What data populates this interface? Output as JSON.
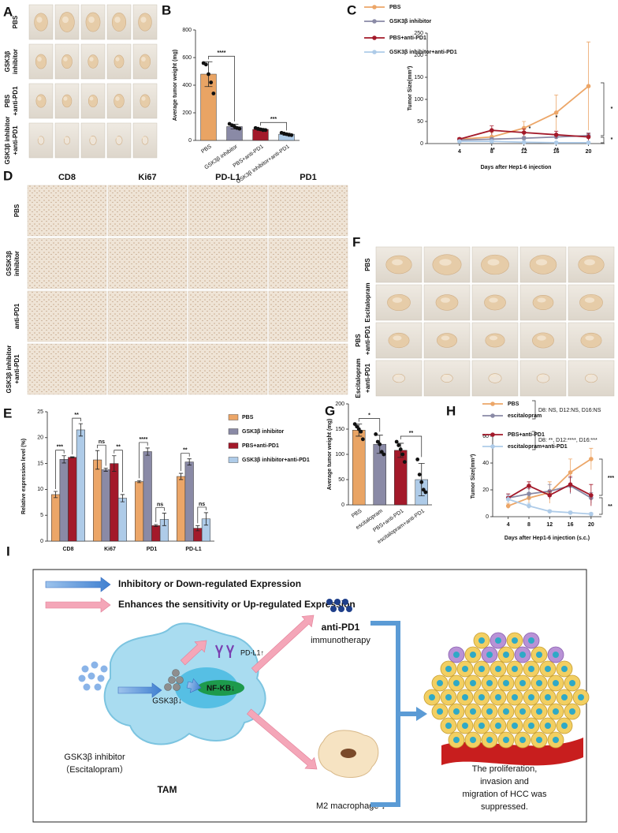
{
  "chart_data": [
    {
      "panel": "B",
      "type": "bar",
      "y_label": "Average tumor  weight (mg)",
      "categories": [
        "PBS",
        "GSK3β inhibitor",
        "PBS+anti-PD1",
        "GSK3β inhibitor+anti-PD1"
      ],
      "values": [
        480,
        100,
        80,
        45
      ],
      "errors": [
        90,
        18,
        8,
        8
      ],
      "points": [
        [
          560,
          550,
          480,
          420,
          340
        ],
        [
          120,
          110,
          100,
          90,
          85
        ],
        [
          90,
          85,
          80,
          75,
          75
        ],
        [
          55,
          50,
          45,
          40,
          38
        ]
      ],
      "colors": [
        "#e9a464",
        "#8a8aa6",
        "#a3192a",
        "#aecbe8"
      ],
      "ylim": [
        0,
        800
      ],
      "yticks": [
        0,
        200,
        400,
        600,
        800
      ],
      "annotations": [
        "****",
        "***"
      ]
    },
    {
      "panel": "C",
      "type": "line",
      "y_label": "Tumor Size(mm³)",
      "x_label": "Days after Hep1-6 injection",
      "x": [
        4,
        8,
        12,
        16,
        20
      ],
      "xlim": [
        0,
        22
      ],
      "xticks": [
        4,
        8,
        12,
        16,
        20
      ],
      "ylim": [
        0,
        250
      ],
      "yticks": [
        0,
        50,
        100,
        150,
        200,
        250
      ],
      "series": [
        {
          "name": "PBS",
          "color": "#eca668",
          "values": [
            10,
            15,
            35,
            70,
            130
          ],
          "errors": [
            3,
            10,
            15,
            40,
            100
          ]
        },
        {
          "name": "GSK3β inhibitor",
          "color": "#8a8aa6",
          "values": [
            8,
            10,
            12,
            15,
            18
          ],
          "errors": [
            2,
            3,
            4,
            5,
            6
          ]
        },
        {
          "name": "PBS+anti-PD1",
          "color": "#a3192a",
          "values": [
            10,
            30,
            25,
            20,
            15
          ],
          "errors": [
            3,
            10,
            8,
            8,
            8
          ]
        },
        {
          "name": "GSK3β inhibitor+anti-PD1",
          "color": "#aecbe8",
          "values": [
            5,
            5,
            3,
            2,
            2
          ],
          "errors": [
            2,
            2,
            1,
            1,
            1
          ]
        }
      ],
      "annotations": [
        "**",
        "*",
        "**",
        "*",
        "**",
        "*",
        "*"
      ]
    },
    {
      "panel": "E",
      "type": "bar",
      "y_label": "Relative expression level  (%)",
      "categories": [
        "CD8",
        "Ki67",
        "PD1",
        "PD-L1"
      ],
      "series": [
        {
          "name": "PBS",
          "color": "#eca668",
          "values": [
            9,
            15.7,
            11.5,
            12.5
          ],
          "errors": [
            0.6,
            1.8,
            0.2,
            0.6
          ]
        },
        {
          "name": "GSK3β inhibitor",
          "color": "#8a8aa6",
          "values": [
            15.8,
            13.8,
            17.3,
            15.3
          ],
          "errors": [
            0.7,
            0.3,
            0.7,
            0.6
          ]
        },
        {
          "name": "PBS+anti-PD1",
          "color": "#a3192a",
          "values": [
            16.2,
            15,
            3,
            2.5
          ],
          "errors": [
            0.1,
            1.5,
            0.2,
            0.5
          ]
        },
        {
          "name": "GSK3β inhibitor+anti-PD1",
          "color": "#aecbe8",
          "values": [
            21.5,
            8.3,
            4.2,
            4.3
          ],
          "errors": [
            1.2,
            0.7,
            1.2,
            1.2
          ]
        }
      ],
      "ylim": [
        0,
        25
      ],
      "yticks": [
        0,
        5,
        10,
        15,
        20,
        25
      ],
      "annotations": [
        "***",
        "**",
        "ns",
        "**",
        "****",
        "ns",
        "**",
        "ns"
      ]
    },
    {
      "panel": "G",
      "type": "bar",
      "y_label": "Average tumor weight (mg)",
      "categories": [
        "PBS",
        "escitalopram",
        "PBS+anti-PD1",
        "escitalopram+anti-PD1"
      ],
      "values": [
        148,
        120,
        108,
        50
      ],
      "errors": [
        12,
        18,
        14,
        32
      ],
      "points": [
        [
          160,
          155,
          150,
          145,
          130
        ],
        [
          140,
          125,
          120,
          105,
          100
        ],
        [
          125,
          118,
          110,
          100,
          85
        ],
        [
          90,
          60,
          45,
          30,
          25
        ]
      ],
      "colors": [
        "#e9a464",
        "#8a8aa6",
        "#a3192a",
        "#aecbe8"
      ],
      "ylim": [
        0,
        200
      ],
      "yticks": [
        0,
        50,
        100,
        150,
        200
      ],
      "annotations": [
        "*",
        "**"
      ]
    },
    {
      "panel": "H",
      "type": "line",
      "y_label": "Tumor Size(mm³)",
      "x_label": "Days after Hep1-6 injection (s.c.)",
      "x": [
        4,
        8,
        12,
        16,
        20
      ],
      "xlim": [
        1,
        22
      ],
      "xticks": [
        4,
        8,
        12,
        16,
        20
      ],
      "ylim": [
        0,
        60
      ],
      "yticks": [
        0,
        20,
        40,
        60
      ],
      "series": [
        {
          "name": "PBS",
          "color": "#eca668",
          "values": [
            8,
            14,
            18,
            33,
            43
          ],
          "errors": [
            2,
            4,
            8,
            10,
            8
          ]
        },
        {
          "name": "escitalopram",
          "color": "#8a8aa6",
          "values": [
            14,
            17,
            19,
            23,
            14
          ],
          "errors": [
            3,
            4,
            5,
            6,
            4
          ]
        },
        {
          "name": "PBS+anti-PD1",
          "color": "#a3192a",
          "values": [
            14,
            23,
            16,
            24,
            16
          ],
          "errors": [
            3,
            3,
            3,
            6,
            8
          ]
        },
        {
          "name": "escitalopram+anti-PD1",
          "color": "#aecbe8",
          "values": [
            13,
            8,
            4,
            3,
            2
          ],
          "errors": [
            3,
            2,
            1,
            1,
            1
          ]
        }
      ],
      "notes": [
        "D8: NS, D12:NS, D16:NS",
        "D8: **, D12:****, D16:***"
      ],
      "annotations": [
        "***",
        "**"
      ]
    }
  ],
  "photo_panels": [
    {
      "panel": "A",
      "row_labels": [
        [
          "PBS"
        ],
        [
          "GSK3β",
          "inhibitor"
        ],
        [
          "PBS",
          "+anti-PD1"
        ],
        [
          "GSK3β inhibitor",
          "+anti-PD1"
        ]
      ]
    },
    {
      "panel": "D",
      "columns": [
        "CD8",
        "Ki67",
        "PD-L1",
        "PD1"
      ],
      "row_labels": [
        [
          "PBS"
        ],
        [
          "GSSK3β",
          "inhibitor"
        ],
        [
          "anti-PD1"
        ],
        [
          "GSK3β inhibitor",
          "+anti-PD1"
        ]
      ]
    },
    {
      "panel": "F",
      "row_labels": [
        [
          "PBS"
        ],
        [
          "Escitalopram"
        ],
        [
          "PBS",
          "+anti-PD1"
        ],
        [
          "Escitalopram",
          "+anti-PD1"
        ]
      ]
    }
  ],
  "diagram": {
    "panel": "I",
    "legend": [
      "Inhibitory or Down-regulated Expression",
      "Enhances the sensitivity or Up-regulated Expression"
    ],
    "pd_l1": "PD-L1↑",
    "therapy": [
      "anti-PD1",
      "immunotherapy"
    ],
    "gsk3b": "GSK3β↓",
    "nfkb": "NF-KB↓",
    "tam": "TAM",
    "inhibitor": [
      "GSK3β inhibitor",
      "（Escitalopram）"
    ],
    "m2": "M2 macrophage ↓",
    "outcome": [
      "The proliferation,",
      "invasion and",
      "migration of HCC was",
      "suppressed."
    ]
  }
}
